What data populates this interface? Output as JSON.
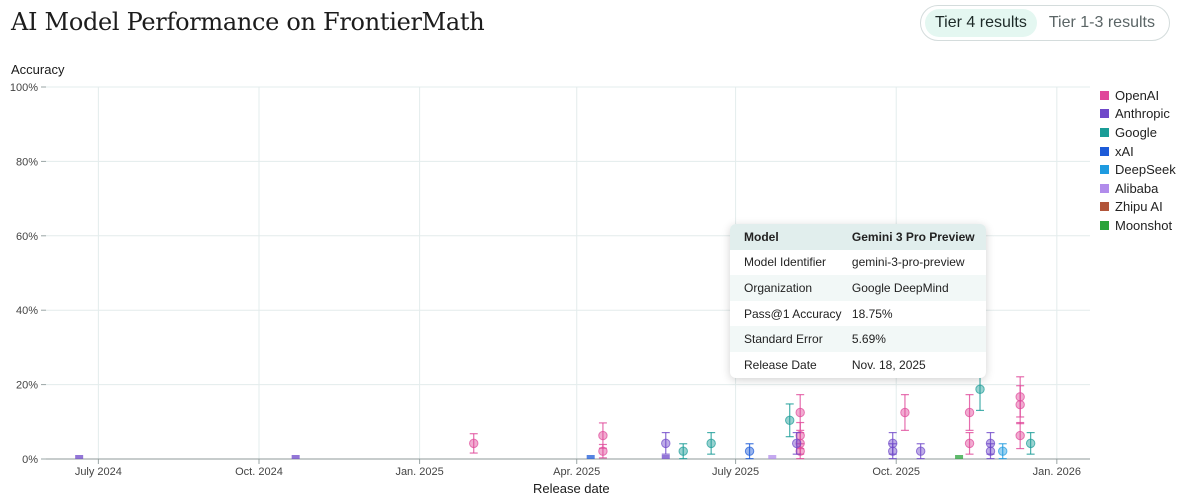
{
  "page": {
    "title": "AI Model Performance on FrontierMath"
  },
  "toggle": {
    "options": [
      {
        "label": "Tier 4 results",
        "active": true
      },
      {
        "label": "Tier 1-3 results",
        "active": false
      }
    ]
  },
  "chart_data": {
    "type": "scatter",
    "ylabel": "Accuracy",
    "xlabel": "Release date",
    "ylim": [
      0,
      100
    ],
    "yticks": [
      "0%",
      "20%",
      "40%",
      "60%",
      "80%",
      "100%"
    ],
    "xlim": [
      "2024-06-01",
      "2026-01-20"
    ],
    "xticks": [
      {
        "date": "2024-07-01",
        "label": "July 2024"
      },
      {
        "date": "2024-10-01",
        "label": "Oct. 2024"
      },
      {
        "date": "2025-01-01",
        "label": "Jan. 2025"
      },
      {
        "date": "2025-04-01",
        "label": "Apr. 2025"
      },
      {
        "date": "2025-07-01",
        "label": "July 2025"
      },
      {
        "date": "2025-10-01",
        "label": "Oct. 2025"
      },
      {
        "date": "2026-01-01",
        "label": "Jan. 2026"
      }
    ],
    "grid": true,
    "legend_position": "right",
    "series": [
      {
        "name": "OpenAI",
        "color": "#e0489a",
        "points": [
          {
            "date": "2025-02-01",
            "y": 4.2,
            "err": 2.6
          },
          {
            "date": "2025-04-16",
            "y": 2.1,
            "err": 1.8
          },
          {
            "date": "2025-04-16",
            "y": 6.3,
            "err": 3.4
          },
          {
            "date": "2025-08-07",
            "y": 12.5,
            "err": 4.8
          },
          {
            "date": "2025-08-07",
            "y": 6.3,
            "err": 3.5
          },
          {
            "date": "2025-08-07",
            "y": 4.2,
            "err": 2.9
          },
          {
            "date": "2025-08-07",
            "y": 2.1,
            "err": 2.0
          },
          {
            "date": "2025-10-06",
            "y": 12.5,
            "err": 4.8
          },
          {
            "date": "2025-11-12",
            "y": 12.5,
            "err": 4.8
          },
          {
            "date": "2025-11-12",
            "y": 4.2,
            "err": 2.9
          },
          {
            "date": "2025-12-11",
            "y": 16.7,
            "err": 5.4
          },
          {
            "date": "2025-12-11",
            "y": 14.6,
            "err": 5.1
          },
          {
            "date": "2025-12-11",
            "y": 6.3,
            "err": 3.5
          }
        ]
      },
      {
        "name": "Anthropic",
        "color": "#6f48c9",
        "points": [
          {
            "date": "2024-06-20",
            "y": 0,
            "err": 0
          },
          {
            "date": "2024-10-22",
            "y": 0,
            "err": 0
          },
          {
            "date": "2025-05-22",
            "y": 4.2,
            "err": 2.9
          },
          {
            "date": "2025-05-22",
            "y": 0,
            "err": 0
          },
          {
            "date": "2025-08-05",
            "y": 4.2,
            "err": 2.9
          },
          {
            "date": "2025-09-29",
            "y": 4.2,
            "err": 2.9
          },
          {
            "date": "2025-09-29",
            "y": 2.1,
            "err": 2.0
          },
          {
            "date": "2025-10-15",
            "y": 2.1,
            "err": 2.0
          },
          {
            "date": "2025-11-24",
            "y": 4.2,
            "err": 2.9
          },
          {
            "date": "2025-11-24",
            "y": 2.1,
            "err": 2.0
          }
        ]
      },
      {
        "name": "Google",
        "color": "#1a9c97",
        "points": [
          {
            "date": "2025-06-01",
            "y": 2.1,
            "err": 2.0
          },
          {
            "date": "2025-06-17",
            "y": 4.2,
            "err": 2.9
          },
          {
            "date": "2025-08-01",
            "y": 10.4,
            "err": 4.4
          },
          {
            "date": "2025-11-18",
            "y": 18.75,
            "err": 5.69
          },
          {
            "date": "2025-12-17",
            "y": 4.2,
            "err": 2.9
          }
        ]
      },
      {
        "name": "xAI",
        "color": "#1d5bd8",
        "points": [
          {
            "date": "2025-04-09",
            "y": 0,
            "err": 0
          },
          {
            "date": "2025-07-09",
            "y": 2.1,
            "err": 2.0
          }
        ]
      },
      {
        "name": "DeepSeek",
        "color": "#1f9be0",
        "points": [
          {
            "date": "2025-12-01",
            "y": 2.1,
            "err": 2.0
          }
        ]
      },
      {
        "name": "Alibaba",
        "color": "#b18ceb",
        "points": [
          {
            "date": "2025-07-22",
            "y": 0,
            "err": 0
          }
        ]
      },
      {
        "name": "Zhipu AI",
        "color": "#b2553a",
        "points": []
      },
      {
        "name": "Moonshot",
        "color": "#2aa33b",
        "points": [
          {
            "date": "2025-11-06",
            "y": 0,
            "err": 0
          }
        ]
      }
    ]
  },
  "tooltip": {
    "header": {
      "label": "Model",
      "value": "Gemini 3 Pro Preview"
    },
    "rows": [
      {
        "label": "Model Identifier",
        "value": "gemini-3-pro-preview"
      },
      {
        "label": "Organization",
        "value": "Google DeepMind"
      },
      {
        "label": "Pass@1 Accuracy",
        "value": "18.75%"
      },
      {
        "label": "Standard Error",
        "value": "5.69%"
      },
      {
        "label": "Release Date",
        "value": "Nov. 18, 2025"
      }
    ]
  }
}
